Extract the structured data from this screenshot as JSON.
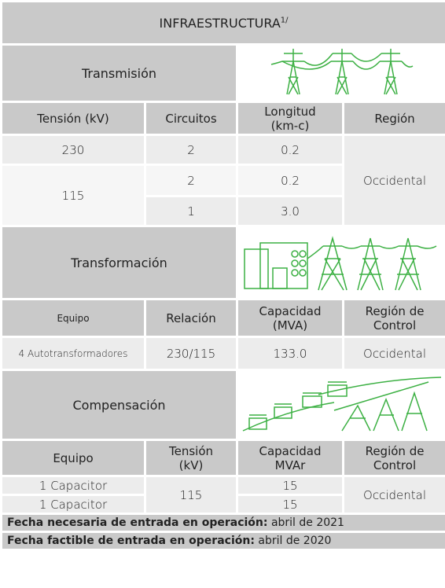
{
  "title": "INFRAESTRUCTURA",
  "title_note": "1/",
  "transmision": {
    "title": "Transmisión",
    "headers": [
      "Tensión (kV)",
      "Circuitos",
      "Longitud (km-c)",
      "Región"
    ],
    "rows": [
      [
        "230",
        "2",
        "0.2",
        "Occidental"
      ],
      [
        "115",
        "2",
        "0.2"
      ],
      [
        "1",
        "3.0"
      ]
    ]
  },
  "transformacion": {
    "title": "Transformación",
    "headers": [
      "Equipo",
      "Relación",
      "Capacidad (MVA)",
      "Región de Control"
    ],
    "rows": [
      [
        "4 Autotransformadores",
        "230/115",
        "133.0",
        "Occidental"
      ]
    ]
  },
  "compensacion": {
    "title": "Compensación",
    "headers": [
      "Equipo",
      "Tensión (kV)",
      "Capacidad MVAr",
      "Región de Control"
    ],
    "rows": [
      [
        "1 Capacitor",
        "115",
        "15",
        "Occidental"
      ],
      [
        "1 Capacitor",
        "15"
      ]
    ]
  },
  "footer": [
    {
      "label": "Fecha necesaria de entrada en operación:",
      "value": "abril de 2021"
    },
    {
      "label": "Fecha factible de entrada en operación:",
      "value": "abril de 2020"
    }
  ]
}
